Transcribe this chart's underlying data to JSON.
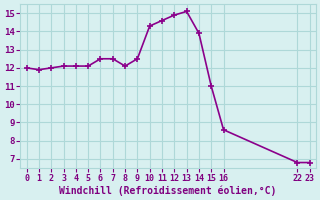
{
  "x": [
    0,
    1,
    2,
    3,
    4,
    5,
    6,
    7,
    8,
    9,
    10,
    11,
    12,
    13,
    14,
    15,
    16,
    22,
    23
  ],
  "y": [
    12.0,
    11.9,
    12.0,
    12.1,
    12.1,
    12.1,
    12.5,
    12.5,
    12.1,
    12.5,
    14.3,
    14.6,
    14.9,
    15.1,
    13.9,
    11.0,
    8.6,
    6.8,
    6.8
  ],
  "xticks": [
    0,
    1,
    2,
    3,
    4,
    5,
    6,
    7,
    8,
    9,
    10,
    11,
    12,
    13,
    14,
    15,
    16,
    22,
    23
  ],
  "xtick_labels": [
    "0",
    "1",
    "2",
    "3",
    "4",
    "5",
    "6",
    "7",
    "8",
    "9",
    "10",
    "11",
    "12",
    "13",
    "14",
    "15",
    "16",
    "22",
    "23"
  ],
  "yticks": [
    7,
    8,
    9,
    10,
    11,
    12,
    13,
    14,
    15
  ],
  "ylim": [
    6.5,
    15.5
  ],
  "xlim": [
    -0.5,
    23.5
  ],
  "xlabel": "Windchill (Refroidissement éolien,°C)",
  "line_color": "#8b008b",
  "marker": "+",
  "bg_color": "#d8f0f0",
  "grid_color": "#aed8d8",
  "tick_color": "#800080",
  "label_color": "#800080",
  "title_color": "#800080",
  "marker_size": 5,
  "line_width": 1.2
}
